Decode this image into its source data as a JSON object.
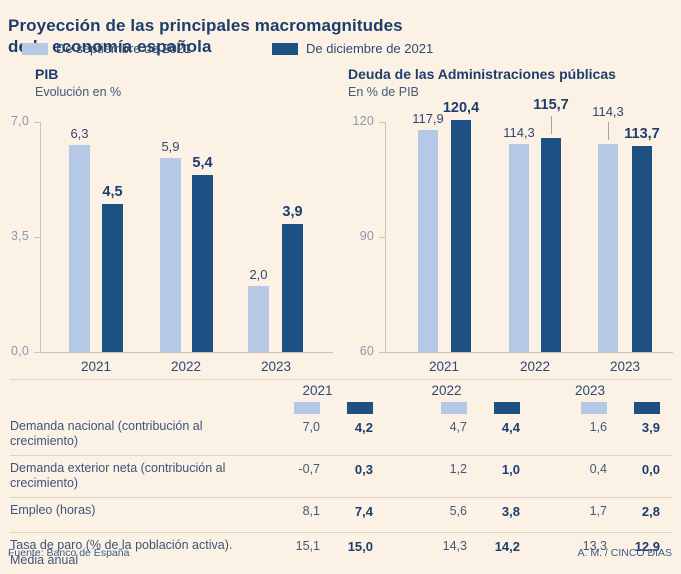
{
  "header": {
    "title_line1": "Proyección de las principales macromagnitudes",
    "title_line2": "de la economía española"
  },
  "legend": {
    "items": [
      {
        "label": "De septiembre de 2021",
        "color": "#b5c9e6"
      },
      {
        "label": "De diciembre de 2021",
        "color": "#1e5183"
      }
    ]
  },
  "chart_data": [
    {
      "type": "bar",
      "title": "PIB",
      "subtitle": "Evolución en %",
      "categories": [
        "2021",
        "2022",
        "2023"
      ],
      "series": [
        {
          "name": "De septiembre de 2021",
          "color": "#b5c9e6",
          "values": [
            6.3,
            5.9,
            2.0
          ],
          "labels": [
            "6,3",
            "5,9",
            "2,0"
          ]
        },
        {
          "name": "De diciembre de 2021",
          "color": "#1e5183",
          "values": [
            4.5,
            5.4,
            3.9
          ],
          "labels": [
            "4,5",
            "5,4",
            "3,9"
          ]
        }
      ],
      "ylim": [
        0,
        7
      ],
      "yticks": [
        {
          "value": 7,
          "label": "7,0"
        },
        {
          "value": 3.5,
          "label": "3,5"
        },
        {
          "value": 0,
          "label": "0,0"
        }
      ],
      "grid": false,
      "legend_position": "top"
    },
    {
      "type": "bar",
      "title": "Deuda de las Administraciones públicas",
      "subtitle": "En % de PIB",
      "categories": [
        "2021",
        "2022",
        "2023"
      ],
      "series": [
        {
          "name": "De septiembre de 2021",
          "color": "#b5c9e6",
          "values": [
            117.9,
            114.3,
            114.3
          ],
          "labels": [
            "117,9",
            "114,3",
            "114,3"
          ]
        },
        {
          "name": "De diciembre de 2021",
          "color": "#1e5183",
          "values": [
            120.4,
            115.7,
            113.7
          ],
          "labels": [
            "120,4",
            "115,7",
            "113,7"
          ]
        }
      ],
      "ylim": [
        60,
        120
      ],
      "yticks": [
        {
          "value": 120,
          "label": "120"
        },
        {
          "value": 90,
          "label": "90"
        },
        {
          "value": 60,
          "label": "60"
        }
      ],
      "grid": false,
      "legend_position": "top"
    }
  ],
  "table": {
    "col_headers": [
      "2021",
      "2022",
      "2023"
    ],
    "rows": [
      {
        "label": "Demanda nacional (contribución al crecimiento)",
        "values": [
          "7,0",
          "4,2",
          "4,7",
          "4,4",
          "1,6",
          "3,9"
        ]
      },
      {
        "label": "Demanda exterior neta (contribu­ción al crecimiento)",
        "values": [
          "-0,7",
          "0,3",
          "1,2",
          "1,0",
          "0,4",
          "0,0"
        ]
      },
      {
        "label": "Empleo (horas)",
        "values": [
          "8,1",
          "7,4",
          "5,6",
          "3,8",
          "1,7",
          "2,8"
        ]
      },
      {
        "label": "Tasa de paro (% de la población activa). Media anual",
        "values": [
          "15,1",
          "15,0",
          "14,3",
          "14,2",
          "13,3",
          "12,9"
        ]
      }
    ]
  },
  "footer": {
    "source": "Fuente: Banco de España",
    "credit": "A. M. / CINCO DÍAS"
  },
  "colors": {
    "background": "#fcf1e5",
    "light_series": "#b5c9e6",
    "dark_series": "#1e5183",
    "title_navy": "#1d3e6d"
  }
}
